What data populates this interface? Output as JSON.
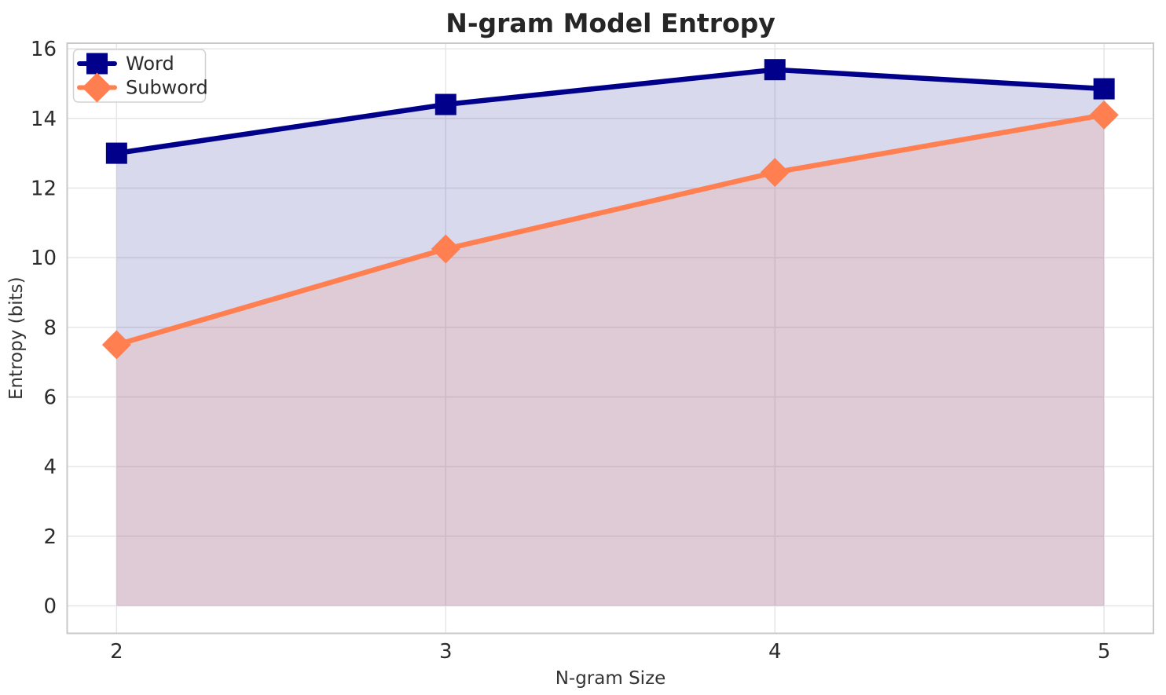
{
  "chart_data": {
    "type": "line",
    "title": "N-gram Model Entropy",
    "xlabel": "N-gram Size",
    "ylabel": "Entropy (bits)",
    "x": [
      2,
      3,
      4,
      5
    ],
    "series": [
      {
        "name": "Word",
        "values": [
          13.0,
          14.4,
          15.4,
          14.85
        ],
        "color": "#00008b",
        "marker": "square",
        "fill_below": true
      },
      {
        "name": "Subword",
        "values": [
          7.5,
          10.25,
          12.45,
          14.1
        ],
        "color": "#ff7f50",
        "marker": "diamond",
        "fill_below": true
      }
    ],
    "fill_opacity": 0.15,
    "fill_baseline": 0,
    "xlim": [
      1.85,
      5.15
    ],
    "ylim": [
      -0.79,
      16.16
    ],
    "xticks": [
      "2",
      "3",
      "4",
      "5"
    ],
    "yticks": [
      "0",
      "2",
      "4",
      "6",
      "8",
      "10",
      "12",
      "14",
      "16"
    ],
    "xtick_values": [
      2,
      3,
      4,
      5
    ],
    "ytick_values": [
      0,
      2,
      4,
      6,
      8,
      10,
      12,
      14,
      16
    ],
    "grid": true,
    "legend": {
      "position": "upper left",
      "entries": [
        "Word",
        "Subword"
      ]
    },
    "style": {
      "background": "#ffffff",
      "grid_color": "#e6e6e6",
      "spine_color": "#c9c9c9",
      "text_color": "#2b2b2b",
      "legend_border": "#d2d2d2",
      "legend_background": "#ffffff"
    }
  }
}
